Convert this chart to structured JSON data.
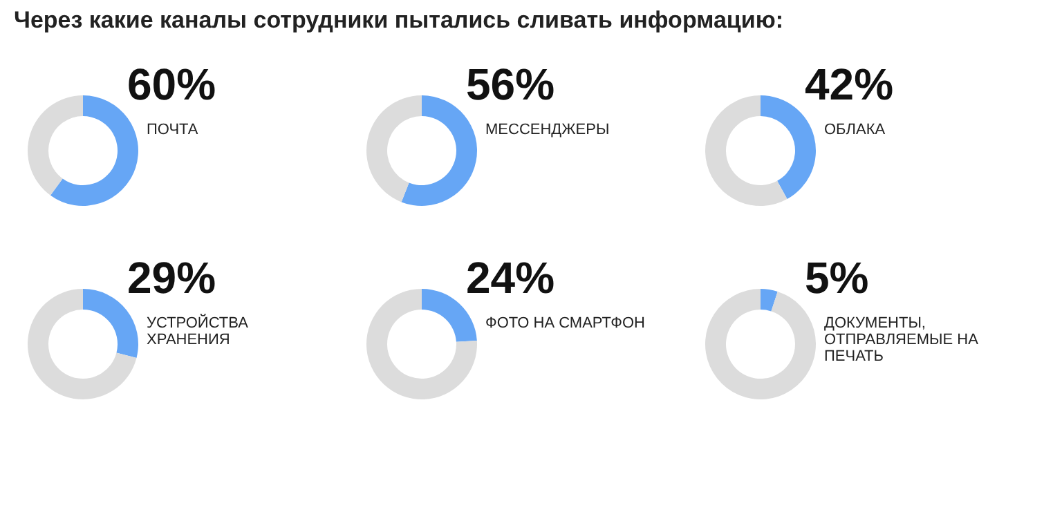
{
  "chart_data": [
    {
      "type": "donut",
      "title": "Через какие каналы сотрудники пытались сливать информацию:",
      "categories": [
        "ПОЧТА",
        null
      ],
      "values": [
        60,
        40
      ],
      "colors": [
        "#66a6f5",
        "#dcdcdc"
      ],
      "value_labels": [
        "60%",
        null
      ]
    },
    {
      "type": "donut",
      "categories": [
        "МЕССЕНДЖЕРЫ",
        null
      ],
      "values": [
        56,
        44
      ],
      "colors": [
        "#66a6f5",
        "#dcdcdc"
      ],
      "value_labels": [
        "56%",
        null
      ]
    },
    {
      "type": "donut",
      "categories": [
        "ОБЛАКА",
        null
      ],
      "values": [
        42,
        58
      ],
      "colors": [
        "#66a6f5",
        "#dcdcdc"
      ],
      "value_labels": [
        "42%",
        null
      ]
    },
    {
      "type": "donut",
      "categories": [
        "УСТРОЙСТВА ХРАНЕНИЯ",
        null
      ],
      "values": [
        29,
        71
      ],
      "colors": [
        "#66a6f5",
        "#dcdcdc"
      ],
      "value_labels": [
        "29%",
        null
      ]
    },
    {
      "type": "donut",
      "categories": [
        "ФОТО НА СМАРТФОН",
        null
      ],
      "values": [
        24,
        76
      ],
      "colors": [
        "#66a6f5",
        "#dcdcdc"
      ],
      "value_labels": [
        "24%",
        null
      ]
    },
    {
      "type": "donut",
      "categories": [
        "ДОКУМЕНТЫ, ОТПРАВЛЯЕМЫЕ НА ПЕЧАТЬ",
        null
      ],
      "values": [
        5,
        95
      ],
      "colors": [
        "#66a6f5",
        "#dcdcdc"
      ],
      "value_labels": [
        "5%",
        null
      ]
    }
  ]
}
